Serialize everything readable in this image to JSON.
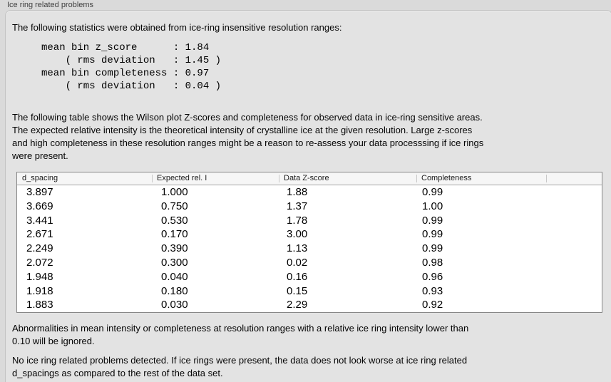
{
  "panel": {
    "title": "Ice ring related problems",
    "intro": [
      "The following statistics were obtained from ice-ring insensitive resolution ranges:"
    ],
    "stats": [
      "mean bin z_score      : 1.84",
      "    ( rms deviation   : 1.45 )",
      "mean bin completeness : 0.97",
      "    ( rms deviation   : 0.04 )"
    ],
    "description": [
      "The following table shows the Wilson plot Z-scores and completeness for observed data in ice-ring sensitive areas.",
      "The expected relative intensity is the theoretical intensity of crystalline ice at the given resolution. Large z-scores",
      "and high completeness in these resolution ranges might be a reason to re-assess your data processsing if ice rings",
      "were present."
    ],
    "ignore_note": [
      "Abnormalities in mean intensity or completeness at resolution ranges with a relative ice ring intensity lower than",
      "0.10 will be ignored."
    ],
    "conclusion": [
      "No ice ring related problems detected. If ice rings were present, the data does not look worse at ice ring related",
      "d_spacings as compared to the rest of the data set."
    ]
  },
  "table": {
    "headers": [
      "d_spacing",
      "Expected rel. I",
      "Data Z-score",
      "Completeness"
    ],
    "rows": [
      [
        "3.897",
        "1.000",
        "1.88",
        "0.99"
      ],
      [
        "3.669",
        "0.750",
        "1.37",
        "1.00"
      ],
      [
        "3.441",
        "0.530",
        "1.78",
        "0.99"
      ],
      [
        "2.671",
        "0.170",
        "3.00",
        "0.99"
      ],
      [
        "2.249",
        "0.390",
        "1.13",
        "0.99"
      ],
      [
        "2.072",
        "0.300",
        "0.02",
        "0.98"
      ],
      [
        "1.948",
        "0.040",
        "0.16",
        "0.96"
      ],
      [
        "1.918",
        "0.180",
        "0.15",
        "0.93"
      ],
      [
        "1.883",
        "0.030",
        "2.29",
        "0.92"
      ]
    ]
  }
}
